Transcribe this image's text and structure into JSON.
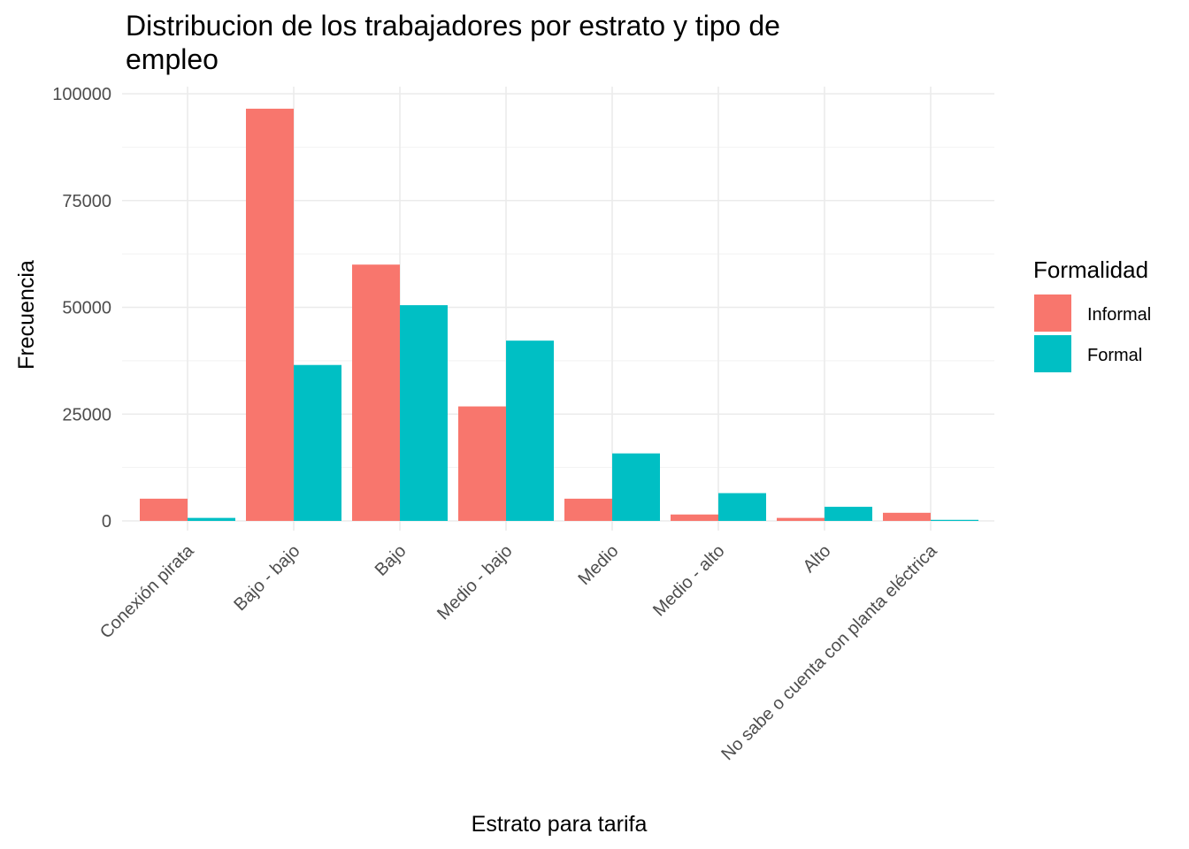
{
  "chart_data": {
    "type": "bar",
    "title": "Distribucion de los trabajadores por estrato y tipo de\n empleo",
    "xlabel": "Estrato para tarifa",
    "ylabel": "Frecuencia",
    "categories": [
      "Conexión pirata",
      "Bajo - bajo",
      "Bajo",
      "Medio - bajo",
      "Medio",
      "Medio - alto",
      "Alto",
      "No sabe o cuenta con planta eléctrica"
    ],
    "series": [
      {
        "name": "Informal",
        "color": "#F8766D",
        "values": [
          5200,
          96500,
          60000,
          26800,
          5200,
          1500,
          700,
          1900
        ]
      },
      {
        "name": "Formal",
        "color": "#00BFC4",
        "values": [
          700,
          36500,
          50500,
          42200,
          15800,
          6500,
          3300,
          250
        ]
      }
    ],
    "ylim": [
      0,
      100000
    ],
    "yticks": [
      0,
      25000,
      50000,
      75000,
      100000
    ],
    "ytick_labels": [
      "0",
      "25000",
      "50000",
      "75000",
      "100000"
    ],
    "legend_title": "Formalidad",
    "legend_position": "right",
    "grid": true
  }
}
